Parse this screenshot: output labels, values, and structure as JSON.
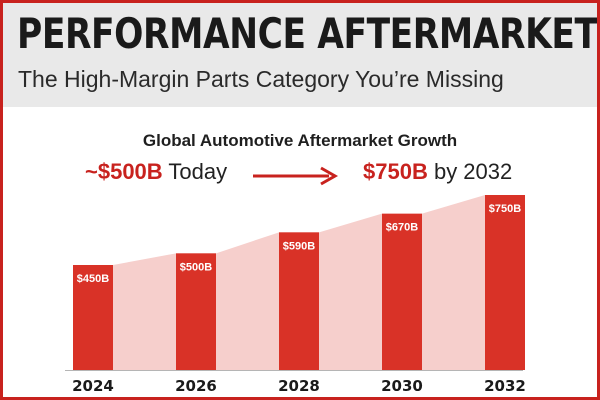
{
  "header": {
    "title": "PERFORMANCE AFTERMARKET PARTS",
    "subtitle": "The High-Margin Parts Category You’re Missing"
  },
  "callout": {
    "today_value": "~$500B",
    "today_suffix": " Today",
    "future_value": "$750B",
    "future_suffix": " by 2032"
  },
  "colors": {
    "accent_red": "#c8221e",
    "bar_red": "#d93227",
    "area_pink": "#f6cfcc",
    "header_gray": "#e9e9e9"
  },
  "chart_data": {
    "type": "bar",
    "title": "Global Automotive Aftermarket Growth",
    "xlabel": "",
    "ylabel": "",
    "categories": [
      "2024",
      "2026",
      "2028",
      "2030",
      "2032"
    ],
    "values": [
      450,
      500,
      590,
      670,
      750
    ],
    "data_labels": [
      "$450B",
      "$500B",
      "$590B",
      "$670B",
      "$750B"
    ],
    "ylim": [
      0,
      750
    ],
    "grid": false,
    "legend": "none",
    "area_fill_behind_bars": true
  }
}
